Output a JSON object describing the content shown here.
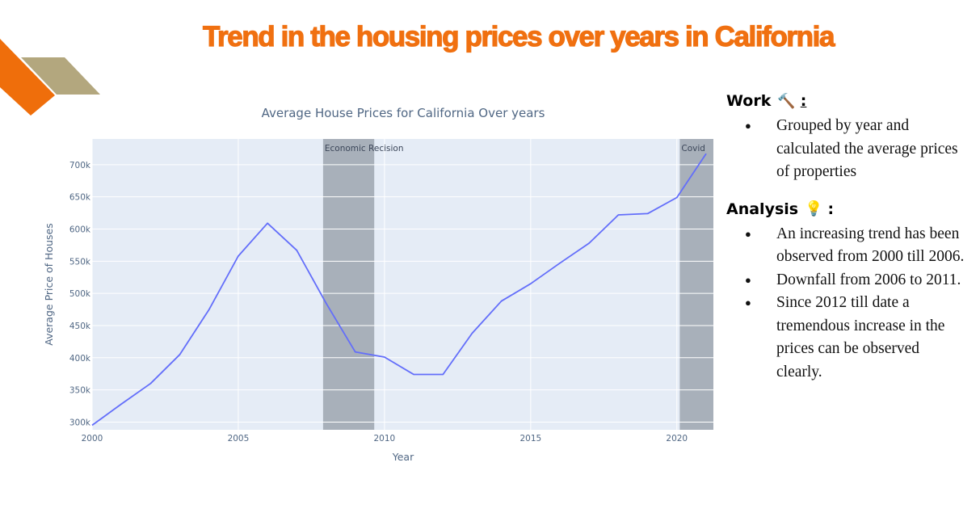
{
  "slide": {
    "title": "Trend in the housing prices over years in California"
  },
  "colors": {
    "title": "#f07010",
    "line": "#636efa",
    "plot_bg": "#e5ecf6",
    "band": "#a8b0ba",
    "deco_orange": "#ef6e0b",
    "deco_tan": "#b3a77e"
  },
  "chart_data": {
    "type": "line",
    "title": "Average House Prices for California Over years",
    "xlabel": "Year",
    "ylabel": "Average Price of Houses",
    "xlim": [
      2000,
      2021.25
    ],
    "ylim": [
      288000,
      740000
    ],
    "x_ticks": [
      2000,
      2005,
      2010,
      2015,
      2020
    ],
    "y_ticks": [
      300000,
      350000,
      400000,
      450000,
      500000,
      550000,
      600000,
      650000,
      700000
    ],
    "y_tick_labels": [
      "300k",
      "350k",
      "400k",
      "450k",
      "500k",
      "550k",
      "600k",
      "650k",
      "700k"
    ],
    "grid": true,
    "x": [
      2000,
      2001,
      2002,
      2003,
      2004,
      2005,
      2006,
      2007,
      2008,
      2009,
      2010,
      2011,
      2012,
      2013,
      2014,
      2015,
      2016,
      2017,
      2018,
      2019,
      2020,
      2021
    ],
    "values": [
      295000,
      328000,
      360000,
      405000,
      475000,
      558000,
      609000,
      567000,
      485000,
      409000,
      401000,
      374000,
      374000,
      438000,
      488000,
      515000,
      547000,
      578000,
      622000,
      624000,
      649000,
      717000
    ],
    "bands": [
      {
        "label": "Economic Recision",
        "x0": 2007.9,
        "x1": 2009.65
      },
      {
        "label": "Covid",
        "x0": 2020.1,
        "x1": 2021.25
      }
    ]
  },
  "side": {
    "work": {
      "heading": "Work",
      "emoji": "🔨",
      "colon": ":",
      "bullets": [
        "Grouped by  year and calculated the average prices of properties"
      ]
    },
    "analysis": {
      "heading": "Analysis",
      "emoji": "💡",
      "colon": ":",
      "bullets": [
        "An increasing trend has been observed from 2000 till 2006.",
        "Downfall from 2006 to 2011.",
        "Since 2012 till date a tremendous increase in the prices can be observed clearly."
      ]
    },
    "bullet_char": "●"
  }
}
